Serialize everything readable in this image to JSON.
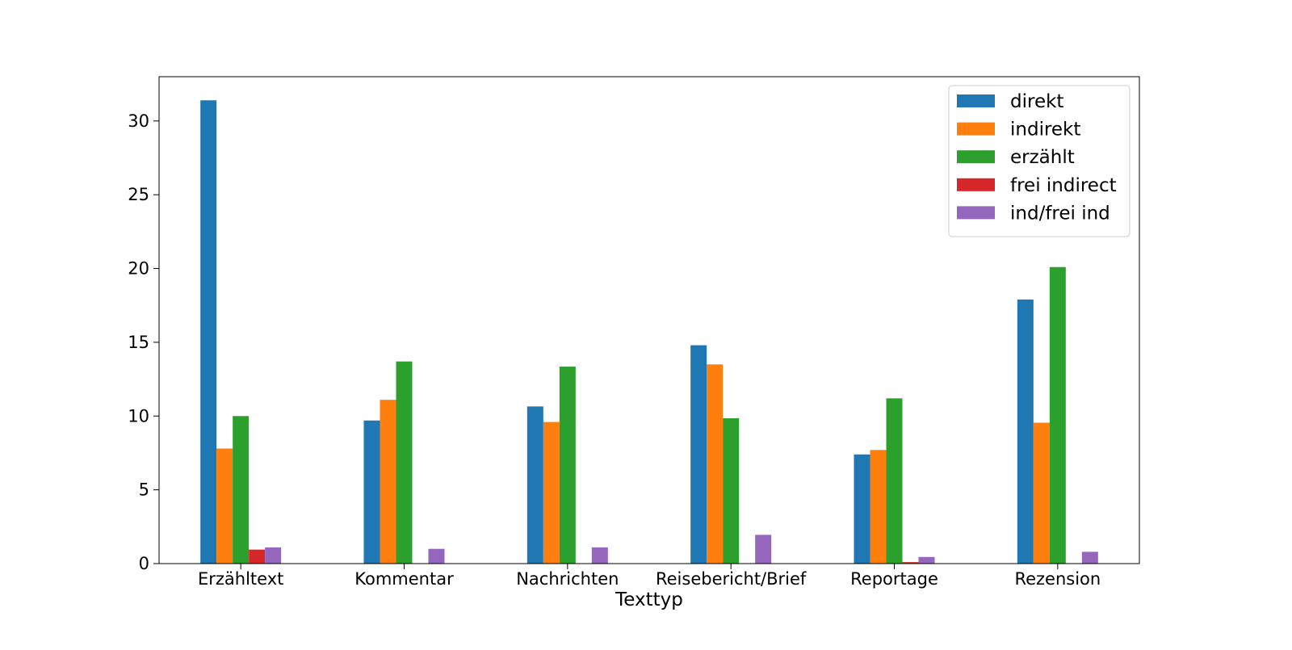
{
  "chart_data": {
    "type": "bar",
    "title": "",
    "xlabel": "Texttyp",
    "ylabel": "",
    "categories": [
      "Erzähltext",
      "Kommentar",
      "Nachrichten",
      "Reisebericht/Brief",
      "Reportage",
      "Rezension"
    ],
    "series": [
      {
        "name": "direkt",
        "color": "#1f77b4",
        "values": [
          31.4,
          9.7,
          10.65,
          14.8,
          7.4,
          17.9
        ]
      },
      {
        "name": "indirekt",
        "color": "#ff7f0e",
        "values": [
          7.8,
          11.1,
          9.6,
          13.5,
          7.7,
          9.55
        ]
      },
      {
        "name": "erzählt",
        "color": "#2ca02c",
        "values": [
          10.0,
          13.7,
          13.35,
          9.85,
          11.2,
          20.1
        ]
      },
      {
        "name": "frei indirect",
        "color": "#d62728",
        "values": [
          0.95,
          0,
          0,
          0,
          0.1,
          0
        ]
      },
      {
        "name": "ind/frei ind",
        "color": "#9467bd",
        "values": [
          1.1,
          1.0,
          1.1,
          1.95,
          0.45,
          0.8
        ]
      }
    ],
    "yticks": [
      0,
      5,
      10,
      15,
      20,
      25,
      30
    ],
    "ylim": [
      0,
      33
    ],
    "grid": false,
    "legend": "top-right"
  }
}
